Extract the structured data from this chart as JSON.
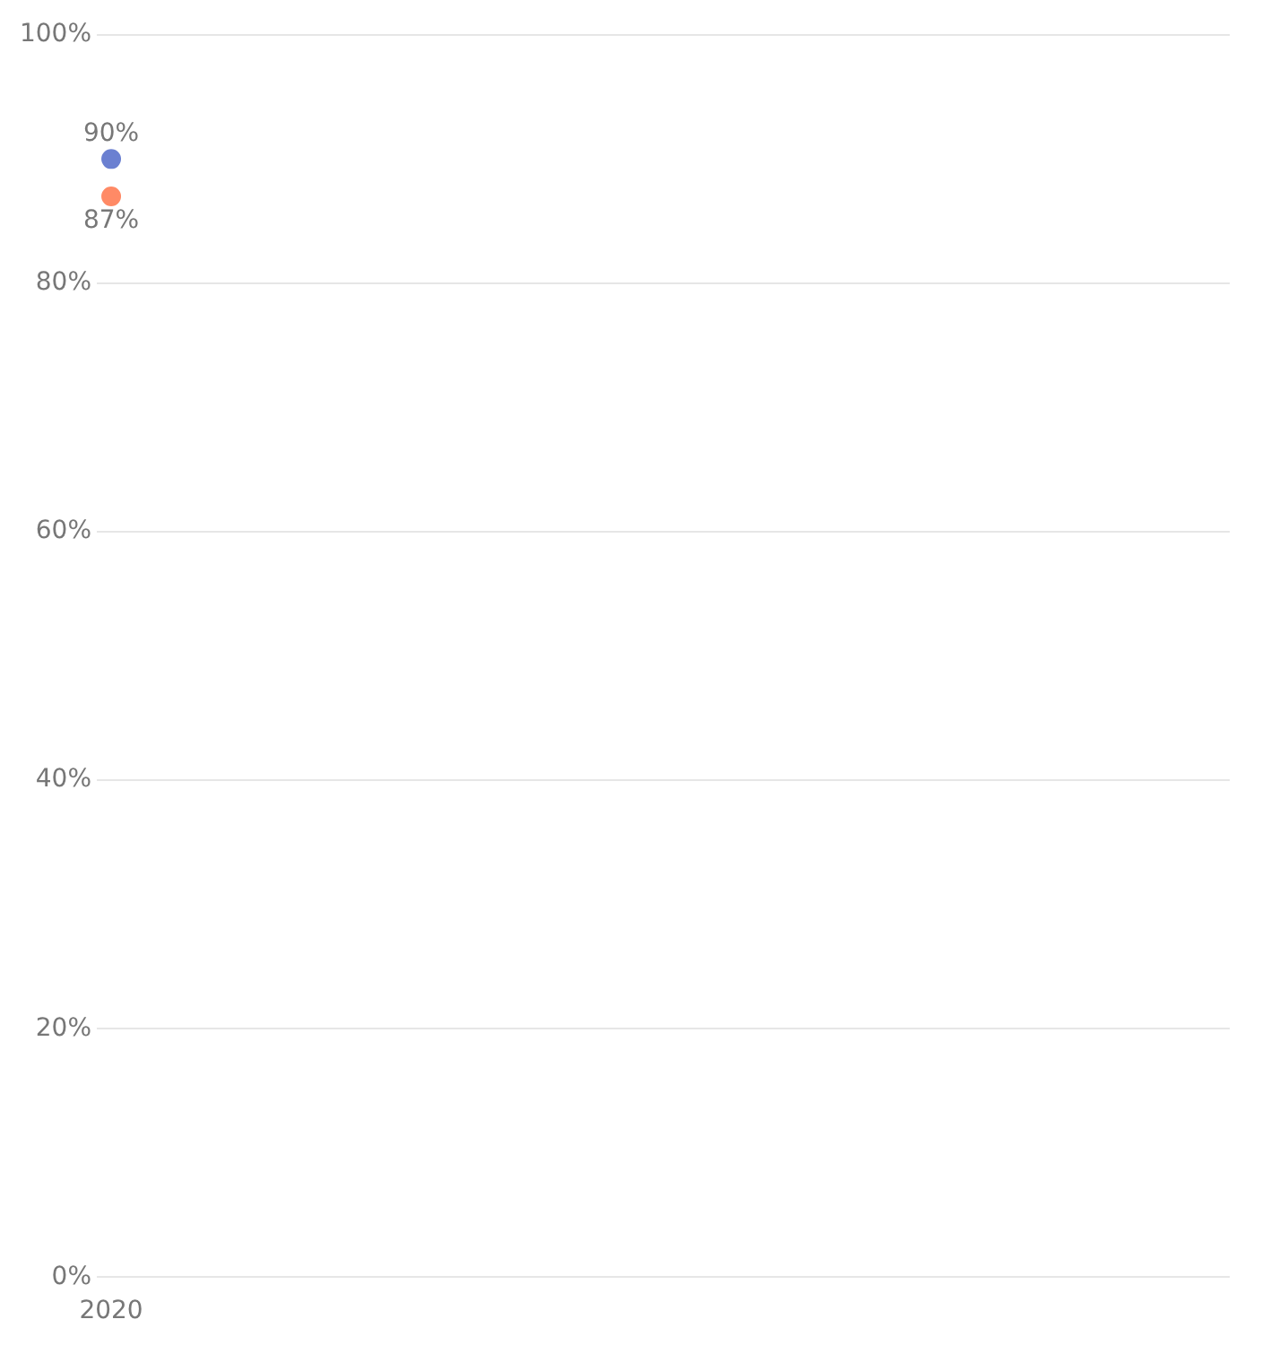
{
  "chart_data": {
    "type": "line",
    "categories": [
      "2020"
    ],
    "series": [
      {
        "color": "#6b80d1",
        "values": [
          90
        ],
        "value_labels": [
          "90%"
        ]
      },
      {
        "color": "#ff8a66",
        "values": [
          87
        ],
        "value_labels": [
          "87%"
        ]
      }
    ],
    "ylim": [
      0,
      100
    ],
    "yticks": [
      {
        "value": 0,
        "label": "0%"
      },
      {
        "value": 20,
        "label": "20%"
      },
      {
        "value": 40,
        "label": "40%"
      },
      {
        "value": 60,
        "label": "60%"
      },
      {
        "value": 80,
        "label": "80%"
      },
      {
        "value": 100,
        "label": "100%"
      }
    ],
    "grid": "y",
    "marker": "circle",
    "legend": false
  }
}
